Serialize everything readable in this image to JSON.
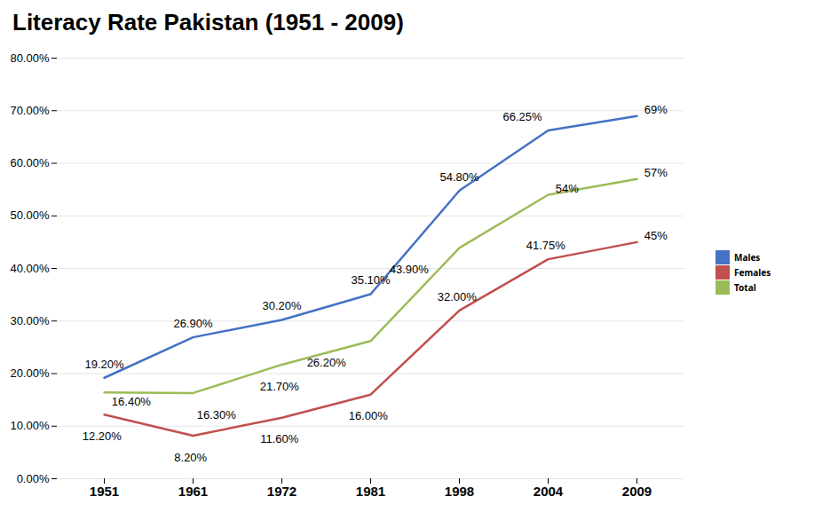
{
  "chart_data": {
    "type": "line",
    "title": "Literacy Rate Pakistan (1951 - 2009)",
    "categories": [
      "1951",
      "1961",
      "1972",
      "1981",
      "1998",
      "2004",
      "2009"
    ],
    "series": [
      {
        "name": "Males",
        "color": "#4472C4",
        "values": [
          19.2,
          26.9,
          30.2,
          35.1,
          54.8,
          66.25,
          69
        ],
        "value_labels": [
          "19.20%",
          "26.90%",
          "30.20%",
          "35.10%",
          "54.80%",
          "66.25%",
          "69%"
        ]
      },
      {
        "name": "Females",
        "color": "#C0504D",
        "values": [
          12.2,
          8.2,
          11.6,
          16.0,
          32.0,
          41.75,
          45
        ],
        "value_labels": [
          "12.20%",
          "8.20%",
          "11.60%",
          "16.00%",
          "32.00%",
          "41.75%",
          "45%"
        ]
      },
      {
        "name": "Total",
        "color": "#9BBB59",
        "values": [
          16.4,
          16.3,
          21.7,
          26.2,
          43.9,
          54,
          57
        ],
        "value_labels": [
          "16.40%",
          "16.30%",
          "21.70%",
          "26.20%",
          "43.90%",
          "54%",
          "57%"
        ]
      }
    ],
    "ylim": [
      0,
      80
    ],
    "yticks": [
      {
        "value": 0,
        "label": "0.00%"
      },
      {
        "value": 10,
        "label": "10.00%"
      },
      {
        "value": 20,
        "label": "20.00%"
      },
      {
        "value": 30,
        "label": "30.00%"
      },
      {
        "value": 40,
        "label": "40.00%"
      },
      {
        "value": 50,
        "label": "50.00%"
      },
      {
        "value": 60,
        "label": "60.00%"
      },
      {
        "value": 70,
        "label": "70.00%"
      },
      {
        "value": 80,
        "label": "80.00%"
      }
    ],
    "grid": true,
    "legend": "right",
    "data_labels": true
  }
}
